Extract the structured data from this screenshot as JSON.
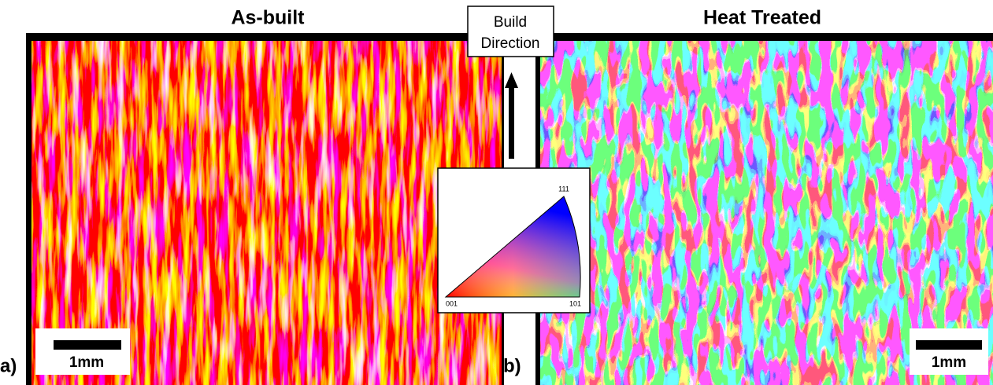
{
  "panels": [
    {
      "label": "a)",
      "title": "As-built",
      "scale_bar": "1mm"
    },
    {
      "label": "b)",
      "title": "Heat Treated",
      "scale_bar": "1mm"
    }
  ],
  "build_direction": [
    "Build",
    "Direction"
  ],
  "ipf_legend": {
    "top": "111",
    "bottom_left": "001",
    "bottom_right": "101"
  }
}
